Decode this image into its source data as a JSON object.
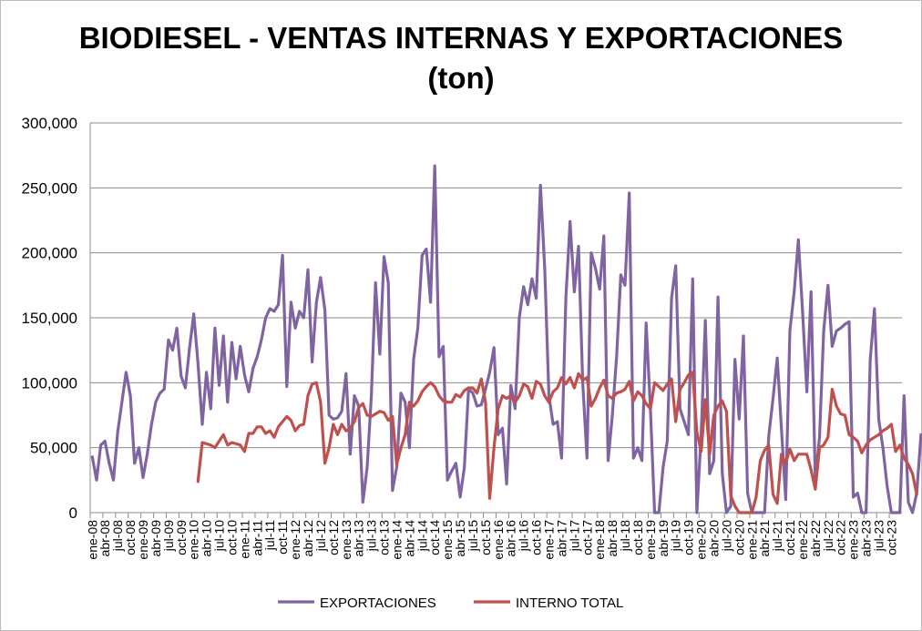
{
  "chart_data": {
    "type": "line",
    "title": "BIODIESEL - VENTAS INTERNAS Y EXPORTACIONES",
    "subtitle": "(ton)",
    "xlabel": "",
    "ylabel": "",
    "ylim": [
      0,
      300000
    ],
    "yticks": [
      "0",
      "50,000",
      "100,000",
      "150,000",
      "200,000",
      "250,000",
      "300,000"
    ],
    "grid": true,
    "legend_position": "bottom",
    "tick_labels": [
      "ene-08",
      "abr-08",
      "jul-08",
      "oct-08",
      "ene-09",
      "abr-09",
      "jul-09",
      "oct-09",
      "ene-10",
      "abr-10",
      "jul-10",
      "oct-10",
      "ene-11",
      "abr-11",
      "jul-11",
      "oct-11",
      "ene-12",
      "abr-12",
      "jul-12",
      "oct-12",
      "ene-13",
      "abr-13",
      "jul-13",
      "oct-13",
      "ene-14",
      "abr-14",
      "jul-14",
      "oct-14",
      "ene-15",
      "abr-15",
      "jul-15",
      "oct-15",
      "ene-16",
      "abr-16",
      "jul-16",
      "oct-16",
      "ene-17",
      "abr-17",
      "jul-17",
      "oct-17",
      "ene-18",
      "abr-18",
      "jul-18",
      "oct-18",
      "ene-19",
      "abr-19",
      "jul-19",
      "oct-19",
      "ene-20",
      "abr-20",
      "jul-20",
      "oct-20",
      "ene-21",
      "abr-21",
      "jul-21",
      "oct-21",
      "ene-22",
      "abr-22",
      "jul-22",
      "oct-22",
      "ene-23",
      "abr-23",
      "jul-23",
      "oct-23"
    ],
    "series": [
      {
        "name": "EXPORTACIONES",
        "color": "#8064a2",
        "start": "ene-08",
        "values": [
          43000,
          25000,
          52000,
          55000,
          38000,
          25000,
          62000,
          85000,
          108000,
          90000,
          38000,
          50000,
          27000,
          45000,
          68000,
          85000,
          92000,
          95000,
          133000,
          125000,
          142000,
          105000,
          96000,
          127000,
          153000,
          115000,
          68000,
          108000,
          80000,
          142000,
          98000,
          136000,
          85000,
          131000,
          103000,
          128000,
          106000,
          93000,
          111000,
          120000,
          133000,
          150000,
          157000,
          155000,
          160000,
          198000,
          97000,
          162000,
          142000,
          155000,
          150000,
          187000,
          116000,
          162000,
          181000,
          156000,
          75000,
          72000,
          73000,
          78000,
          107000,
          45000,
          90000,
          82000,
          8000,
          35000,
          90000,
          177000,
          122000,
          197000,
          177000,
          17000,
          35000,
          92000,
          85000,
          50000,
          118000,
          142000,
          198000,
          203000,
          162000,
          267000,
          120000,
          128000,
          25000,
          32000,
          38000,
          12000,
          35000,
          95000,
          92000,
          82000,
          83000,
          95000,
          108000,
          127000,
          60000,
          65000,
          22000,
          98000,
          80000,
          150000,
          174000,
          160000,
          180000,
          165000,
          252000,
          188000,
          90000,
          68000,
          70000,
          42000,
          165000,
          224000,
          170000,
          205000,
          100000,
          42000,
          200000,
          188000,
          172000,
          213000,
          40000,
          75000,
          120000,
          183000,
          175000,
          246000,
          42000,
          50000,
          40000,
          146000,
          80000,
          0,
          0,
          35000,
          55000,
          165000,
          190000,
          80000,
          70000,
          60000,
          180000,
          0,
          60000,
          148000,
          30000,
          40000,
          166000,
          30000,
          0,
          5000,
          118000,
          72000,
          136000,
          15000,
          0,
          0,
          0,
          0,
          59000,
          88000,
          119000,
          65000,
          10000,
          140000,
          170000,
          210000,
          155000,
          93000,
          170000,
          25000,
          58000,
          140000,
          175000,
          128000,
          140000,
          142000,
          145000,
          147000,
          12000,
          15000,
          0,
          0,
          118000,
          157000,
          72000,
          50000,
          20000,
          0,
          0,
          0,
          90000,
          8000,
          0,
          15000,
          60000,
          52000,
          38000,
          22000,
          22000,
          0
        ]
      },
      {
        "name": "INTERNO TOTAL",
        "color": "#c0504d",
        "start": "feb-10",
        "values": [
          24000,
          54000,
          53000,
          52000,
          50000,
          55000,
          60000,
          52000,
          54000,
          53000,
          52000,
          47000,
          61000,
          61000,
          66000,
          66000,
          61000,
          63000,
          58000,
          66000,
          70000,
          74000,
          71000,
          63000,
          67000,
          68000,
          90000,
          99000,
          100000,
          85000,
          38000,
          50000,
          68000,
          60000,
          68000,
          63000,
          65000,
          70000,
          81000,
          84000,
          75000,
          74000,
          76000,
          78000,
          77000,
          71000,
          74000,
          37000,
          50000,
          60000,
          85000,
          82000,
          86000,
          93000,
          97000,
          100000,
          97000,
          90000,
          86000,
          85000,
          85000,
          91000,
          89000,
          94000,
          96000,
          96000,
          92000,
          103000,
          85000,
          11000,
          50000,
          80000,
          90000,
          88000,
          90000,
          85000,
          90000,
          99000,
          97000,
          88000,
          101000,
          99000,
          90000,
          85000,
          93000,
          96000,
          104000,
          99000,
          104000,
          96000,
          107000,
          102000,
          104000,
          82000,
          88000,
          96000,
          102000,
          90000,
          88000,
          92000,
          93000,
          95000,
          101000,
          86000,
          93000,
          90000,
          84000,
          80000,
          100000,
          97000,
          94000,
          99000,
          103000,
          70000,
          95000,
          100000,
          106000,
          108000,
          62000,
          47000,
          87000,
          45000,
          75000,
          82000,
          86000,
          78000,
          13000,
          5000,
          0,
          0,
          0,
          0,
          12000,
          40000,
          48000,
          52000,
          14000,
          7000,
          45000,
          38000,
          49000,
          40000,
          45000,
          45000,
          45000,
          33000,
          18000,
          50000,
          52000,
          58000,
          95000,
          82000,
          76000,
          75000,
          60000,
          58000,
          55000,
          46000,
          52000,
          56000,
          58000,
          60000,
          63000,
          65000,
          68000,
          47000,
          52000,
          42000,
          37000,
          30000,
          14000
        ]
      }
    ]
  },
  "legend": {
    "items": [
      {
        "label": "EXPORTACIONES",
        "color": "#8064a2"
      },
      {
        "label": "INTERNO TOTAL",
        "color": "#c0504d"
      }
    ]
  }
}
